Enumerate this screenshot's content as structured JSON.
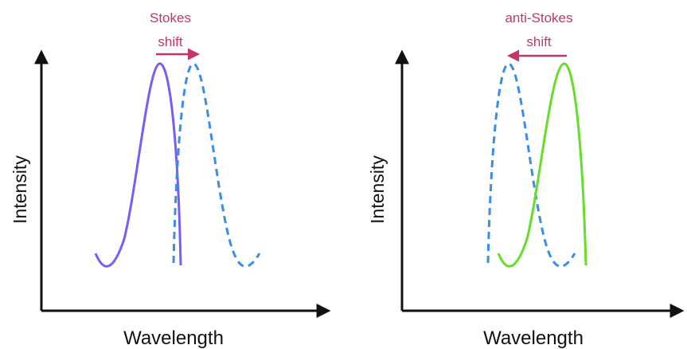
{
  "panels": [
    {
      "id": "stokes",
      "annotation_line1": "Stokes",
      "annotation_line2": "shift",
      "y_axis_label": "Intensity",
      "x_axis_label": "Wavelength",
      "solid_curve_color": "#7b5cf5",
      "dashed_curve_color": "#3a8ee6",
      "annotation_color": "#c8336a",
      "shift_direction": "right"
    },
    {
      "id": "anti-stokes",
      "annotation_line1": "anti-Stokes",
      "annotation_line2": "shift",
      "y_axis_label": "Intensity",
      "x_axis_label": "Wavelength",
      "solid_curve_color": "#66dd2a",
      "dashed_curve_color": "#3a8ee6",
      "annotation_color": "#c8336a",
      "shift_direction": "left"
    }
  ],
  "axis_color": "#111111"
}
